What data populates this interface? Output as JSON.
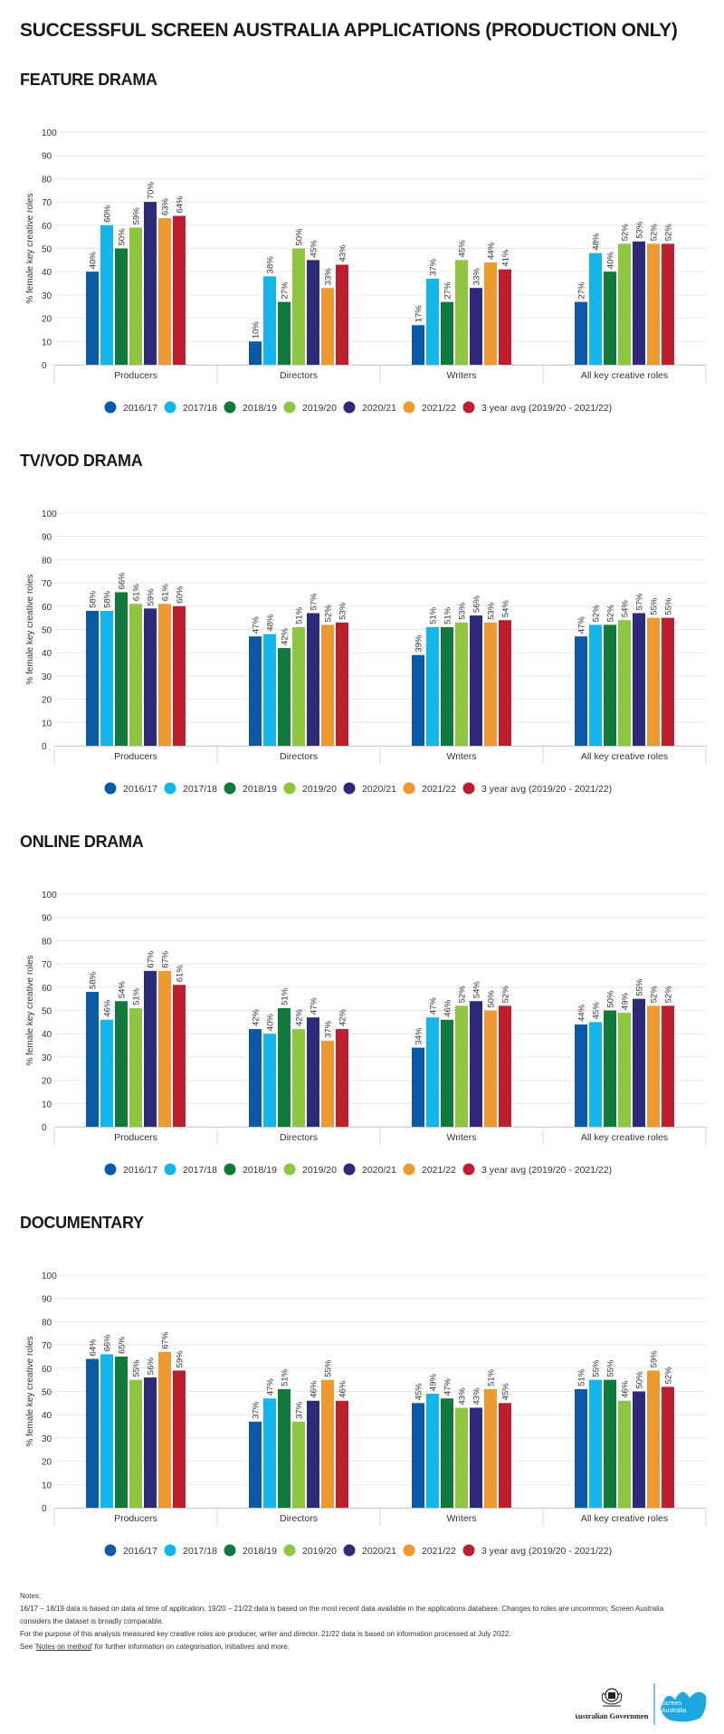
{
  "title": "SUCCESSFUL SCREEN AUSTRALIA APPLICATIONS (PRODUCTION ONLY)",
  "legend_labels": [
    "2016/17",
    "2017/18",
    "2018/19",
    "2019/20",
    "2020/21",
    "2021/22",
    "3 year avg (2019/20 - 2021/22)"
  ],
  "colors": [
    "#0a5aa8",
    "#12b6ea",
    "#0f7a3b",
    "#8ec63f",
    "#2e2a7a",
    "#ee9a2e",
    "#be1e2d"
  ],
  "chart_data": [
    {
      "type": "bar",
      "title": "FEATURE DRAMA",
      "ylabel": "% female key creative roles",
      "ylim": [
        0,
        100
      ],
      "yticks": [
        "0",
        "10",
        "20",
        "30",
        "40",
        "50",
        "60",
        "70",
        "80",
        "90",
        "100"
      ],
      "categories": [
        "Producers",
        "Directors",
        "Writers",
        "All key creative roles"
      ],
      "series": [
        {
          "name": "2016/17",
          "values": [
            40,
            10,
            17,
            27
          ]
        },
        {
          "name": "2017/18",
          "values": [
            60,
            38,
            37,
            48
          ]
        },
        {
          "name": "2018/19",
          "values": [
            50,
            27,
            27,
            40
          ]
        },
        {
          "name": "2019/20",
          "values": [
            59,
            50,
            45,
            52
          ]
        },
        {
          "name": "2020/21",
          "values": [
            70,
            45,
            33,
            53
          ]
        },
        {
          "name": "2021/22",
          "values": [
            63,
            33,
            44,
            52
          ]
        },
        {
          "name": "3 year avg (2019/20 - 2021/22)",
          "values": [
            64,
            43,
            41,
            52
          ]
        }
      ],
      "grid": true,
      "legend": "bottom"
    },
    {
      "type": "bar",
      "title": "TV/VOD DRAMA",
      "ylabel": "% female key creative roles",
      "ylim": [
        0,
        100
      ],
      "yticks": [
        "0",
        "10",
        "20",
        "30",
        "40",
        "50",
        "60",
        "70",
        "80",
        "90",
        "100"
      ],
      "categories": [
        "Producers",
        "Directors",
        "Writers",
        "All key creative roles"
      ],
      "series": [
        {
          "name": "2016/17",
          "values": [
            58,
            47,
            39,
            47
          ]
        },
        {
          "name": "2017/18",
          "values": [
            58,
            48,
            51,
            52
          ]
        },
        {
          "name": "2018/19",
          "values": [
            66,
            42,
            51,
            52
          ]
        },
        {
          "name": "2019/20",
          "values": [
            61,
            51,
            53,
            54
          ]
        },
        {
          "name": "2020/21",
          "values": [
            59,
            57,
            56,
            57
          ]
        },
        {
          "name": "2021/22",
          "values": [
            61,
            52,
            53,
            55
          ]
        },
        {
          "name": "3 year avg (2019/20 - 2021/22)",
          "values": [
            60,
            53,
            54,
            55
          ]
        }
      ],
      "grid": true,
      "legend": "bottom"
    },
    {
      "type": "bar",
      "title": "ONLINE DRAMA",
      "ylabel": "% female key creative roles",
      "ylim": [
        0,
        100
      ],
      "yticks": [
        "0",
        "10",
        "20",
        "30",
        "40",
        "50",
        "60",
        "70",
        "80",
        "90",
        "100"
      ],
      "categories": [
        "Producers",
        "Directors",
        "Writers",
        "All key creative roles"
      ],
      "series": [
        {
          "name": "2016/17",
          "values": [
            58,
            42,
            34,
            44
          ]
        },
        {
          "name": "2017/18",
          "values": [
            46,
            40,
            47,
            45
          ]
        },
        {
          "name": "2018/19",
          "values": [
            54,
            51,
            46,
            50
          ]
        },
        {
          "name": "2019/20",
          "values": [
            51,
            42,
            52,
            49
          ]
        },
        {
          "name": "2020/21",
          "values": [
            67,
            47,
            54,
            55
          ]
        },
        {
          "name": "2021/22",
          "values": [
            67,
            37,
            50,
            52
          ]
        },
        {
          "name": "3 year avg (2019/20 - 2021/22)",
          "values": [
            61,
            42,
            52,
            52
          ]
        }
      ],
      "grid": true,
      "legend": "bottom"
    },
    {
      "type": "bar",
      "title": "DOCUMENTARY",
      "ylabel": "% female key creative roles",
      "ylim": [
        0,
        100
      ],
      "yticks": [
        "0",
        "10",
        "20",
        "30",
        "40",
        "50",
        "60",
        "70",
        "80",
        "90",
        "100"
      ],
      "categories": [
        "Producers",
        "Directors",
        "Writers",
        "All key creative roles"
      ],
      "series": [
        {
          "name": "2016/17",
          "values": [
            64,
            37,
            45,
            51
          ]
        },
        {
          "name": "2017/18",
          "values": [
            66,
            47,
            49,
            55
          ]
        },
        {
          "name": "2018/19",
          "values": [
            65,
            51,
            47,
            55
          ]
        },
        {
          "name": "2019/20",
          "values": [
            55,
            37,
            43,
            46
          ]
        },
        {
          "name": "2020/21",
          "values": [
            56,
            46,
            43,
            50
          ]
        },
        {
          "name": "2021/22",
          "values": [
            67,
            55,
            51,
            59
          ]
        },
        {
          "name": "3 year avg (2019/20 - 2021/22)",
          "values": [
            59,
            46,
            45,
            52
          ]
        }
      ],
      "grid": true,
      "legend": "bottom"
    }
  ],
  "notes": {
    "heading": "Notes:",
    "line1": "16/17 – 18/19 data is based on data at time of application. 19/20 – 21/22 data is based on the most recent data available in the applications database. Changes to roles are uncommon; Screen Australia considers the dataset is broadly comparable.",
    "line2": "For the purpose of this analysis measured key creative roles are producer, writer and director. 21/22 data is based on information processed at July 2022.",
    "line3_prefix": "See '",
    "line3_link": "Notes on method",
    "line3_suffix": "' for further information on categorisation, initiatives and more."
  },
  "logos": {
    "government": "Australian Government",
    "screen_line1": "Screen",
    "screen_line2": "Australia"
  }
}
